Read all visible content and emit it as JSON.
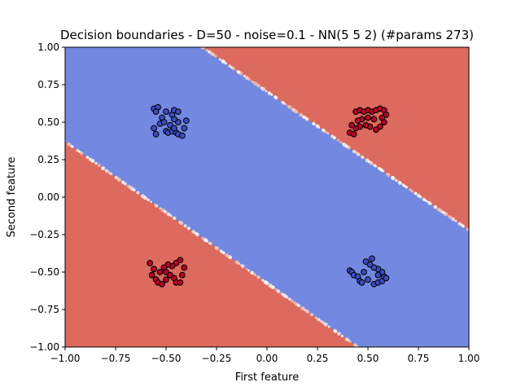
{
  "chart_data": {
    "type": "scatter",
    "title": "Decision boundaries - D=50 - noise=0.1 - NN(5 5 2) (#params 273)",
    "xlabel": "First feature",
    "ylabel": "Second feature",
    "xlim": [
      -1.0,
      1.0
    ],
    "ylim": [
      -1.0,
      1.0
    ],
    "grid": false,
    "x_ticks": [
      "−1.00",
      "−0.75",
      "−0.50",
      "−0.25",
      "0.00",
      "0.25",
      "0.50",
      "0.75",
      "1.00"
    ],
    "y_ticks": [
      "−1.00",
      "−0.75",
      "−0.50",
      "−0.25",
      "0.00",
      "0.25",
      "0.50",
      "0.75",
      "1.00"
    ],
    "x_tick_values": [
      -1.0,
      -0.75,
      -0.5,
      -0.25,
      0.0,
      0.25,
      0.5,
      0.75,
      1.0
    ],
    "y_tick_values": [
      -1.0,
      -0.75,
      -0.5,
      -0.25,
      0.0,
      0.25,
      0.5,
      0.75,
      1.0
    ],
    "colors": {
      "class_red_region": "#dc6a5e",
      "class_blue_region": "#7388e0",
      "class_red_point": "#b40426",
      "class_blue_point": "#3b4cc0",
      "point_edge": "#000000"
    },
    "decision_regions": [
      {
        "class": "red",
        "description": "upper-right region",
        "boundary_line": {
          "x": [
            -0.32,
            1.0
          ],
          "y": [
            1.0,
            -0.22
          ]
        }
      },
      {
        "class": "blue",
        "description": "diagonal band between boundaries"
      },
      {
        "class": "red",
        "description": "lower-left region",
        "boundary_line": {
          "x": [
            -1.0,
            0.45
          ],
          "y": [
            0.37,
            -1.0
          ]
        }
      }
    ],
    "series": [
      {
        "class": "blue",
        "points": [
          [
            -0.56,
            0.59
          ],
          [
            -0.54,
            0.6
          ],
          [
            -0.55,
            0.57
          ],
          [
            -0.52,
            0.53
          ],
          [
            -0.53,
            0.49
          ],
          [
            -0.56,
            0.46
          ],
          [
            -0.55,
            0.42
          ],
          [
            -0.5,
            0.44
          ],
          [
            -0.49,
            0.43
          ],
          [
            -0.47,
            0.44
          ],
          [
            -0.45,
            0.43
          ],
          [
            -0.44,
            0.42
          ],
          [
            -0.42,
            0.41
          ],
          [
            -0.41,
            0.46
          ],
          [
            -0.4,
            0.51
          ],
          [
            -0.44,
            0.5
          ],
          [
            -0.46,
            0.52
          ],
          [
            -0.47,
            0.55
          ],
          [
            -0.46,
            0.58
          ],
          [
            -0.44,
            0.57
          ],
          [
            -0.5,
            0.57
          ],
          [
            -0.51,
            0.5
          ],
          [
            -0.48,
            0.48
          ],
          [
            -0.46,
            0.46
          ],
          [
            0.41,
            -0.49
          ],
          [
            0.42,
            -0.5
          ],
          [
            0.43,
            -0.52
          ],
          [
            0.45,
            -0.53
          ],
          [
            0.46,
            -0.56
          ],
          [
            0.47,
            -0.57
          ],
          [
            0.5,
            -0.55
          ],
          [
            0.53,
            -0.58
          ],
          [
            0.55,
            -0.57
          ],
          [
            0.57,
            -0.56
          ],
          [
            0.58,
            -0.53
          ],
          [
            0.59,
            -0.54
          ],
          [
            0.57,
            -0.5
          ],
          [
            0.55,
            -0.48
          ],
          [
            0.53,
            -0.47
          ],
          [
            0.51,
            -0.45
          ],
          [
            0.49,
            -0.43
          ],
          [
            0.52,
            -0.41
          ],
          [
            0.55,
            -0.52
          ],
          [
            0.48,
            -0.5
          ]
        ]
      },
      {
        "class": "red",
        "points": [
          [
            0.44,
            0.57
          ],
          [
            0.46,
            0.58
          ],
          [
            0.48,
            0.57
          ],
          [
            0.5,
            0.58
          ],
          [
            0.52,
            0.57
          ],
          [
            0.54,
            0.58
          ],
          [
            0.56,
            0.59
          ],
          [
            0.58,
            0.58
          ],
          [
            0.59,
            0.55
          ],
          [
            0.57,
            0.53
          ],
          [
            0.58,
            0.5
          ],
          [
            0.56,
            0.47
          ],
          [
            0.54,
            0.45
          ],
          [
            0.51,
            0.47
          ],
          [
            0.49,
            0.48
          ],
          [
            0.46,
            0.47
          ],
          [
            0.44,
            0.46
          ],
          [
            0.42,
            0.48
          ],
          [
            0.41,
            0.43
          ],
          [
            0.43,
            0.42
          ],
          [
            0.47,
            0.52
          ],
          [
            0.5,
            0.53
          ],
          [
            0.53,
            0.52
          ],
          [
            0.45,
            0.51
          ],
          [
            -0.58,
            -0.44
          ],
          [
            -0.56,
            -0.48
          ],
          [
            -0.57,
            -0.52
          ],
          [
            -0.55,
            -0.55
          ],
          [
            -0.54,
            -0.57
          ],
          [
            -0.52,
            -0.58
          ],
          [
            -0.5,
            -0.55
          ],
          [
            -0.48,
            -0.52
          ],
          [
            -0.46,
            -0.54
          ],
          [
            -0.45,
            -0.57
          ],
          [
            -0.43,
            -0.57
          ],
          [
            -0.42,
            -0.52
          ],
          [
            -0.41,
            -0.47
          ],
          [
            -0.43,
            -0.42
          ],
          [
            -0.45,
            -0.44
          ],
          [
            -0.47,
            -0.46
          ],
          [
            -0.49,
            -0.45
          ],
          [
            -0.51,
            -0.47
          ],
          [
            -0.53,
            -0.5
          ],
          [
            -0.5,
            -0.5
          ]
        ]
      }
    ]
  }
}
